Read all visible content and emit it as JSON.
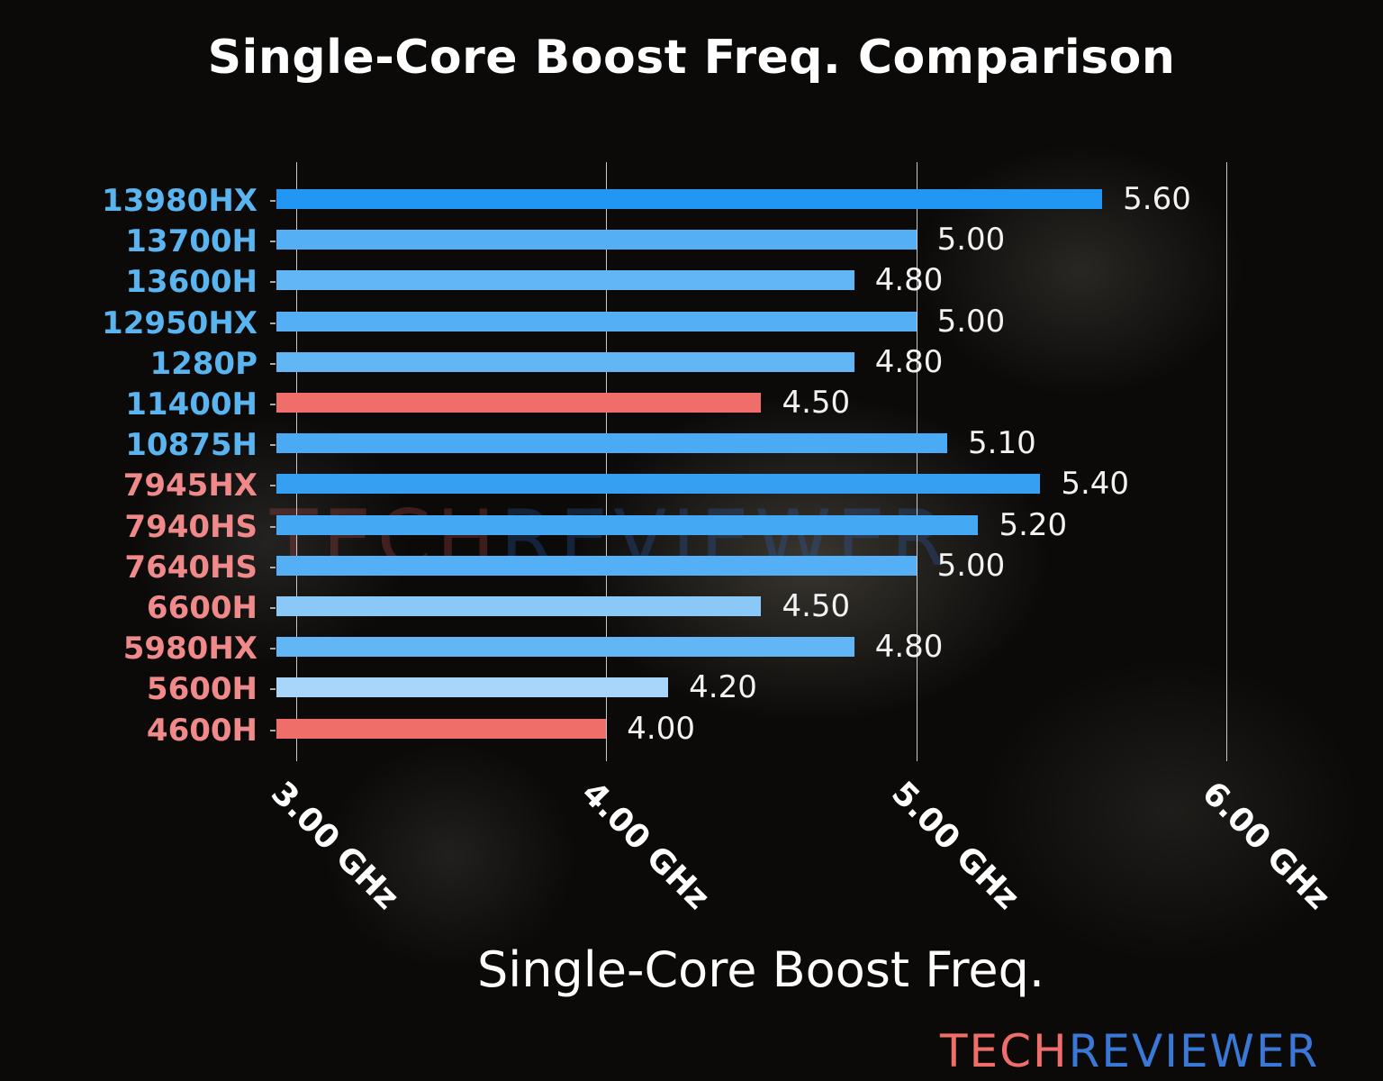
{
  "title": "Single-Core Boost Freq. Comparison",
  "watermark": {
    "part1": "TECH",
    "part2": "REVIEWER"
  },
  "logo": {
    "part1": "TECH",
    "part2": "REVIEWER"
  },
  "xlabel": "Single-Core Boost Freq.",
  "xticks": [
    "3.00 GHz",
    "4.00 GHz",
    "5.00 GHz",
    "6.00 GHz"
  ],
  "chart_data": {
    "type": "bar",
    "orientation": "horizontal",
    "title": "Single-Core Boost Freq. Comparison",
    "xlabel": "Single-Core Boost Freq.",
    "ylabel": "",
    "xlim": [
      2.94,
      6.0
    ],
    "xticks": [
      3.0,
      4.0,
      5.0,
      6.0
    ],
    "xtick_labels": [
      "3.00 GHz",
      "4.00 GHz",
      "5.00 GHz",
      "6.00 GHz"
    ],
    "grid": "vertical",
    "categories": [
      "13980HX",
      "13700H",
      "13600H",
      "12950HX",
      "1280P",
      "11400H",
      "10875H",
      "7945HX",
      "7940HS",
      "7640HS",
      "6600H",
      "5980HX",
      "5600H",
      "4600H"
    ],
    "values": [
      5.6,
      5.0,
      4.8,
      5.0,
      4.8,
      4.5,
      5.1,
      5.4,
      5.2,
      5.0,
      4.5,
      4.8,
      4.2,
      4.0
    ],
    "value_labels": [
      "5.60",
      "5.00",
      "4.80",
      "5.00",
      "4.80",
      "4.50",
      "5.10",
      "5.40",
      "5.20",
      "5.00",
      "4.50",
      "4.80",
      "4.20",
      "4.00"
    ],
    "category_colors": [
      "#5ab4f0",
      "#5ab4f0",
      "#5ab4f0",
      "#5ab4f0",
      "#5ab4f0",
      "#5ab4f0",
      "#5ab4f0",
      "#f08a8a",
      "#f08a8a",
      "#f08a8a",
      "#f08a8a",
      "#f08a8a",
      "#f08a8a",
      "#f08a8a"
    ],
    "bar_colors": [
      "#2196f3",
      "#55aff5",
      "#63b6f6",
      "#55aff5",
      "#63b6f6",
      "#f06e6a",
      "#4aabf4",
      "#35a0f2",
      "#45a8f3",
      "#55aff5",
      "#8ac8f8",
      "#63b6f6",
      "#a8d6fa",
      "#f06e6a"
    ],
    "groups": {
      "intel_label_color": "#5ab4f0",
      "amd_label_color": "#f08a8a",
      "minimum_highlight_color": "#f06e6a"
    }
  }
}
